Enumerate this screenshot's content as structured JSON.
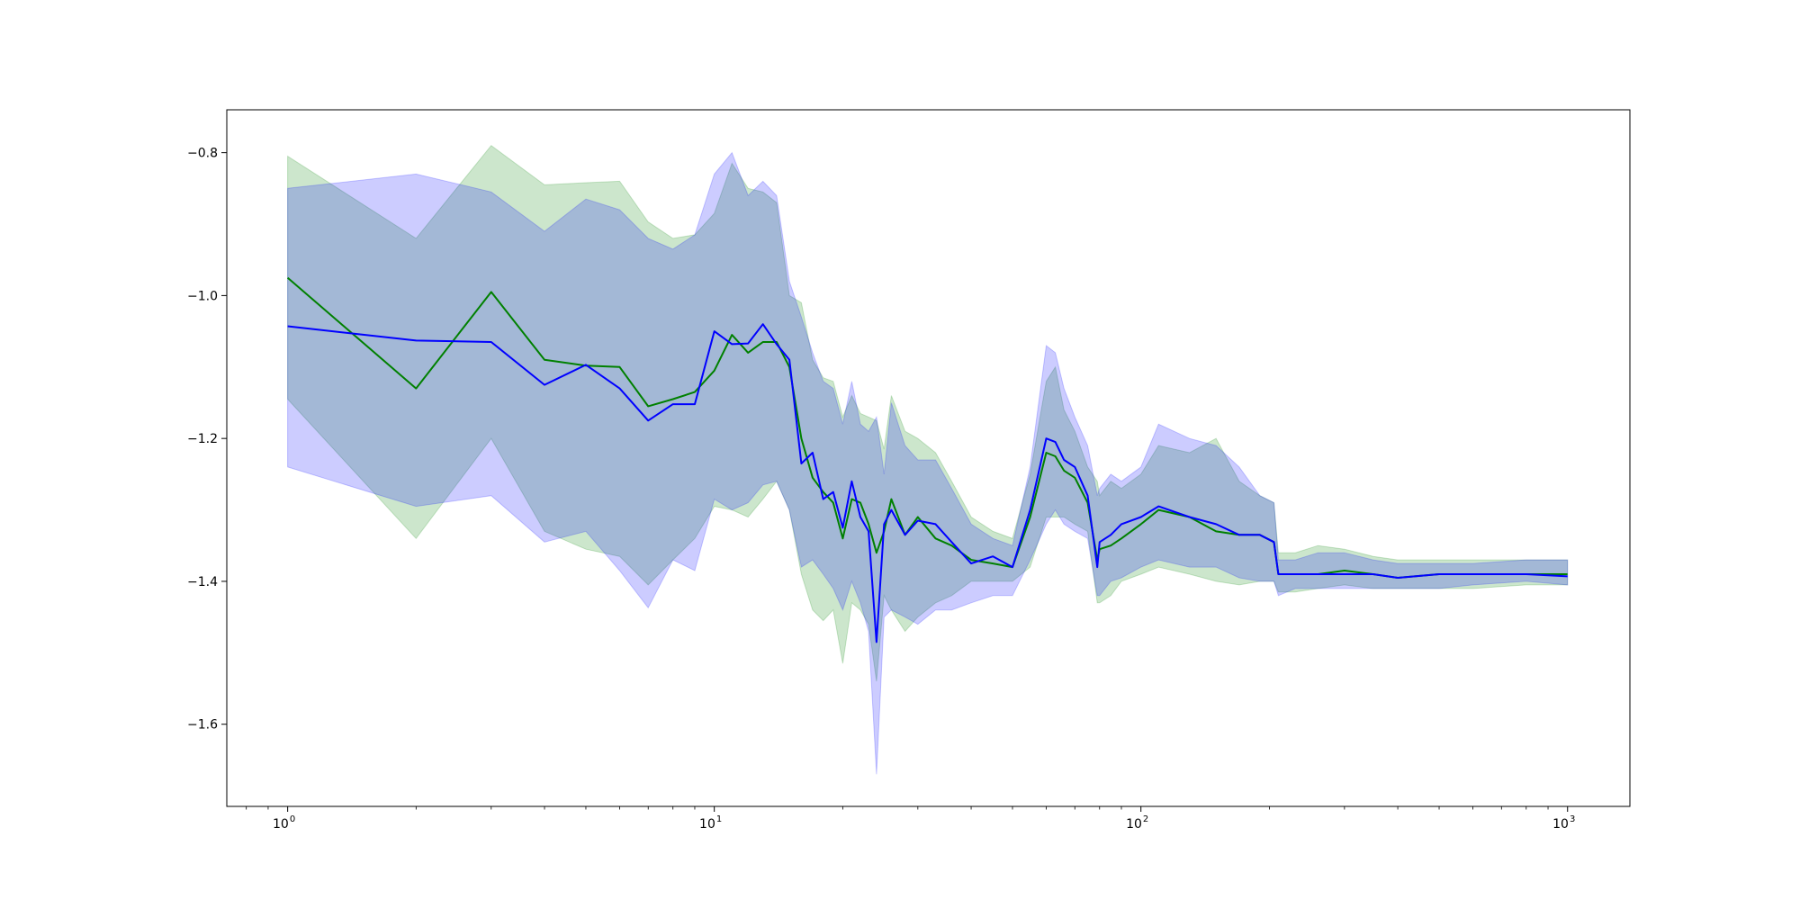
{
  "chart_data": {
    "type": "line",
    "title": "",
    "xlabel": "",
    "ylabel": "",
    "xscale": "log",
    "xlim": [
      0.72,
      1400
    ],
    "ylim": [
      -1.715,
      -0.74
    ],
    "grid": false,
    "legend": "none",
    "x_ticks": [
      {
        "value": 1,
        "base": "10",
        "exp": "0"
      },
      {
        "value": 10,
        "base": "10",
        "exp": "1"
      },
      {
        "value": 100,
        "base": "10",
        "exp": "2"
      },
      {
        "value": 1000,
        "base": "10",
        "exp": "3"
      }
    ],
    "y_ticks": [
      {
        "value": -0.8,
        "label": "−0.8"
      },
      {
        "value": -1.0,
        "label": "−1.0"
      },
      {
        "value": -1.2,
        "label": "−1.2"
      },
      {
        "value": -1.4,
        "label": "−1.4"
      },
      {
        "value": -1.6,
        "label": "−1.6"
      }
    ],
    "series": [
      {
        "color": "#008000",
        "band_color": "#008000",
        "band_opacity": 0.2,
        "x": [
          1,
          2,
          3,
          4,
          5,
          6,
          7,
          8,
          9,
          10,
          11,
          12,
          13,
          14,
          15,
          16,
          17,
          18,
          19,
          20,
          21,
          22,
          23,
          24,
          25,
          26,
          28,
          30,
          33,
          36,
          40,
          45,
          50,
          55,
          60,
          63,
          66,
          70,
          75,
          79,
          80,
          85,
          90,
          100,
          110,
          130,
          150,
          170,
          190,
          205,
          210,
          230,
          260,
          300,
          350,
          400,
          500,
          600,
          800,
          1000
        ],
        "y": [
          -0.975,
          -1.13,
          -0.995,
          -1.09,
          -1.098,
          -1.1,
          -1.155,
          -1.145,
          -1.135,
          -1.105,
          -1.055,
          -1.08,
          -1.065,
          -1.065,
          -1.1,
          -1.2,
          -1.255,
          -1.275,
          -1.29,
          -1.34,
          -1.285,
          -1.29,
          -1.32,
          -1.36,
          -1.33,
          -1.285,
          -1.335,
          -1.31,
          -1.34,
          -1.35,
          -1.37,
          -1.375,
          -1.38,
          -1.31,
          -1.22,
          -1.225,
          -1.245,
          -1.255,
          -1.29,
          -1.37,
          -1.355,
          -1.35,
          -1.34,
          -1.32,
          -1.3,
          -1.31,
          -1.33,
          -1.335,
          -1.335,
          -1.345,
          -1.39,
          -1.39,
          -1.39,
          -1.385,
          -1.39,
          -1.395,
          -1.39,
          -1.39,
          -1.39,
          -1.39
        ],
        "lower": [
          -1.145,
          -1.34,
          -1.2,
          -1.33,
          -1.355,
          -1.365,
          -1.405,
          -1.37,
          -1.34,
          -1.295,
          -1.3,
          -1.31,
          -1.285,
          -1.26,
          -1.3,
          -1.39,
          -1.44,
          -1.455,
          -1.44,
          -1.515,
          -1.43,
          -1.44,
          -1.46,
          -1.54,
          -1.42,
          -1.44,
          -1.47,
          -1.45,
          -1.43,
          -1.42,
          -1.4,
          -1.4,
          -1.4,
          -1.38,
          -1.31,
          -1.31,
          -1.31,
          -1.32,
          -1.33,
          -1.43,
          -1.43,
          -1.42,
          -1.4,
          -1.39,
          -1.38,
          -1.39,
          -1.4,
          -1.405,
          -1.4,
          -1.4,
          -1.415,
          -1.415,
          -1.41,
          -1.405,
          -1.41,
          -1.41,
          -1.41,
          -1.41,
          -1.405,
          -1.405
        ],
        "upper": [
          -0.805,
          -0.92,
          -0.79,
          -0.845,
          -0.842,
          -0.84,
          -0.897,
          -0.92,
          -0.915,
          -0.885,
          -0.815,
          -0.85,
          -0.855,
          -0.87,
          -1.0,
          -1.01,
          -1.09,
          -1.115,
          -1.12,
          -1.17,
          -1.14,
          -1.165,
          -1.17,
          -1.175,
          -1.215,
          -1.14,
          -1.19,
          -1.2,
          -1.22,
          -1.26,
          -1.31,
          -1.33,
          -1.34,
          -1.25,
          -1.12,
          -1.1,
          -1.16,
          -1.19,
          -1.24,
          -1.26,
          -1.28,
          -1.26,
          -1.27,
          -1.25,
          -1.21,
          -1.22,
          -1.2,
          -1.26,
          -1.28,
          -1.29,
          -1.36,
          -1.36,
          -1.35,
          -1.355,
          -1.365,
          -1.37,
          -1.37,
          -1.37,
          -1.37,
          -1.37
        ]
      },
      {
        "color": "#0000ff",
        "band_color": "#0000ff",
        "band_opacity": 0.2,
        "x": [
          1,
          2,
          3,
          4,
          5,
          6,
          7,
          8,
          9,
          10,
          11,
          12,
          13,
          14,
          15,
          16,
          17,
          18,
          19,
          20,
          21,
          22,
          23,
          24,
          25,
          26,
          28,
          30,
          33,
          36,
          40,
          45,
          50,
          55,
          60,
          63,
          66,
          70,
          75,
          79,
          80,
          85,
          90,
          100,
          110,
          130,
          150,
          170,
          190,
          205,
          210,
          230,
          260,
          300,
          350,
          400,
          500,
          600,
          800,
          1000
        ],
        "y": [
          -1.043,
          -1.063,
          -1.065,
          -1.125,
          -1.097,
          -1.13,
          -1.175,
          -1.152,
          -1.152,
          -1.05,
          -1.068,
          -1.067,
          -1.04,
          -1.068,
          -1.09,
          -1.235,
          -1.22,
          -1.285,
          -1.275,
          -1.325,
          -1.26,
          -1.31,
          -1.33,
          -1.485,
          -1.32,
          -1.3,
          -1.335,
          -1.315,
          -1.32,
          -1.345,
          -1.375,
          -1.365,
          -1.38,
          -1.3,
          -1.2,
          -1.205,
          -1.23,
          -1.24,
          -1.28,
          -1.38,
          -1.345,
          -1.335,
          -1.32,
          -1.31,
          -1.295,
          -1.31,
          -1.32,
          -1.335,
          -1.335,
          -1.345,
          -1.39,
          -1.39,
          -1.39,
          -1.39,
          -1.39,
          -1.395,
          -1.39,
          -1.39,
          -1.39,
          -1.393
        ],
        "lower": [
          -1.24,
          -1.295,
          -1.28,
          -1.345,
          -1.33,
          -1.385,
          -1.437,
          -1.37,
          -1.385,
          -1.285,
          -1.3,
          -1.29,
          -1.265,
          -1.26,
          -1.3,
          -1.38,
          -1.37,
          -1.39,
          -1.41,
          -1.44,
          -1.4,
          -1.43,
          -1.47,
          -1.67,
          -1.45,
          -1.44,
          -1.45,
          -1.46,
          -1.44,
          -1.44,
          -1.43,
          -1.42,
          -1.42,
          -1.37,
          -1.32,
          -1.3,
          -1.32,
          -1.33,
          -1.34,
          -1.42,
          -1.42,
          -1.4,
          -1.395,
          -1.38,
          -1.37,
          -1.38,
          -1.38,
          -1.395,
          -1.4,
          -1.4,
          -1.42,
          -1.41,
          -1.41,
          -1.41,
          -1.41,
          -1.41,
          -1.41,
          -1.405,
          -1.4,
          -1.405
        ],
        "upper": [
          -0.85,
          -0.83,
          -0.855,
          -0.91,
          -0.865,
          -0.88,
          -0.92,
          -0.935,
          -0.915,
          -0.83,
          -0.8,
          -0.86,
          -0.84,
          -0.86,
          -0.98,
          -1.03,
          -1.08,
          -1.12,
          -1.13,
          -1.18,
          -1.12,
          -1.18,
          -1.19,
          -1.17,
          -1.25,
          -1.15,
          -1.21,
          -1.23,
          -1.23,
          -1.27,
          -1.32,
          -1.34,
          -1.35,
          -1.24,
          -1.07,
          -1.08,
          -1.13,
          -1.17,
          -1.21,
          -1.28,
          -1.27,
          -1.25,
          -1.26,
          -1.24,
          -1.18,
          -1.2,
          -1.21,
          -1.24,
          -1.28,
          -1.29,
          -1.37,
          -1.37,
          -1.36,
          -1.36,
          -1.37,
          -1.375,
          -1.375,
          -1.375,
          -1.37,
          -1.37
        ]
      }
    ]
  }
}
